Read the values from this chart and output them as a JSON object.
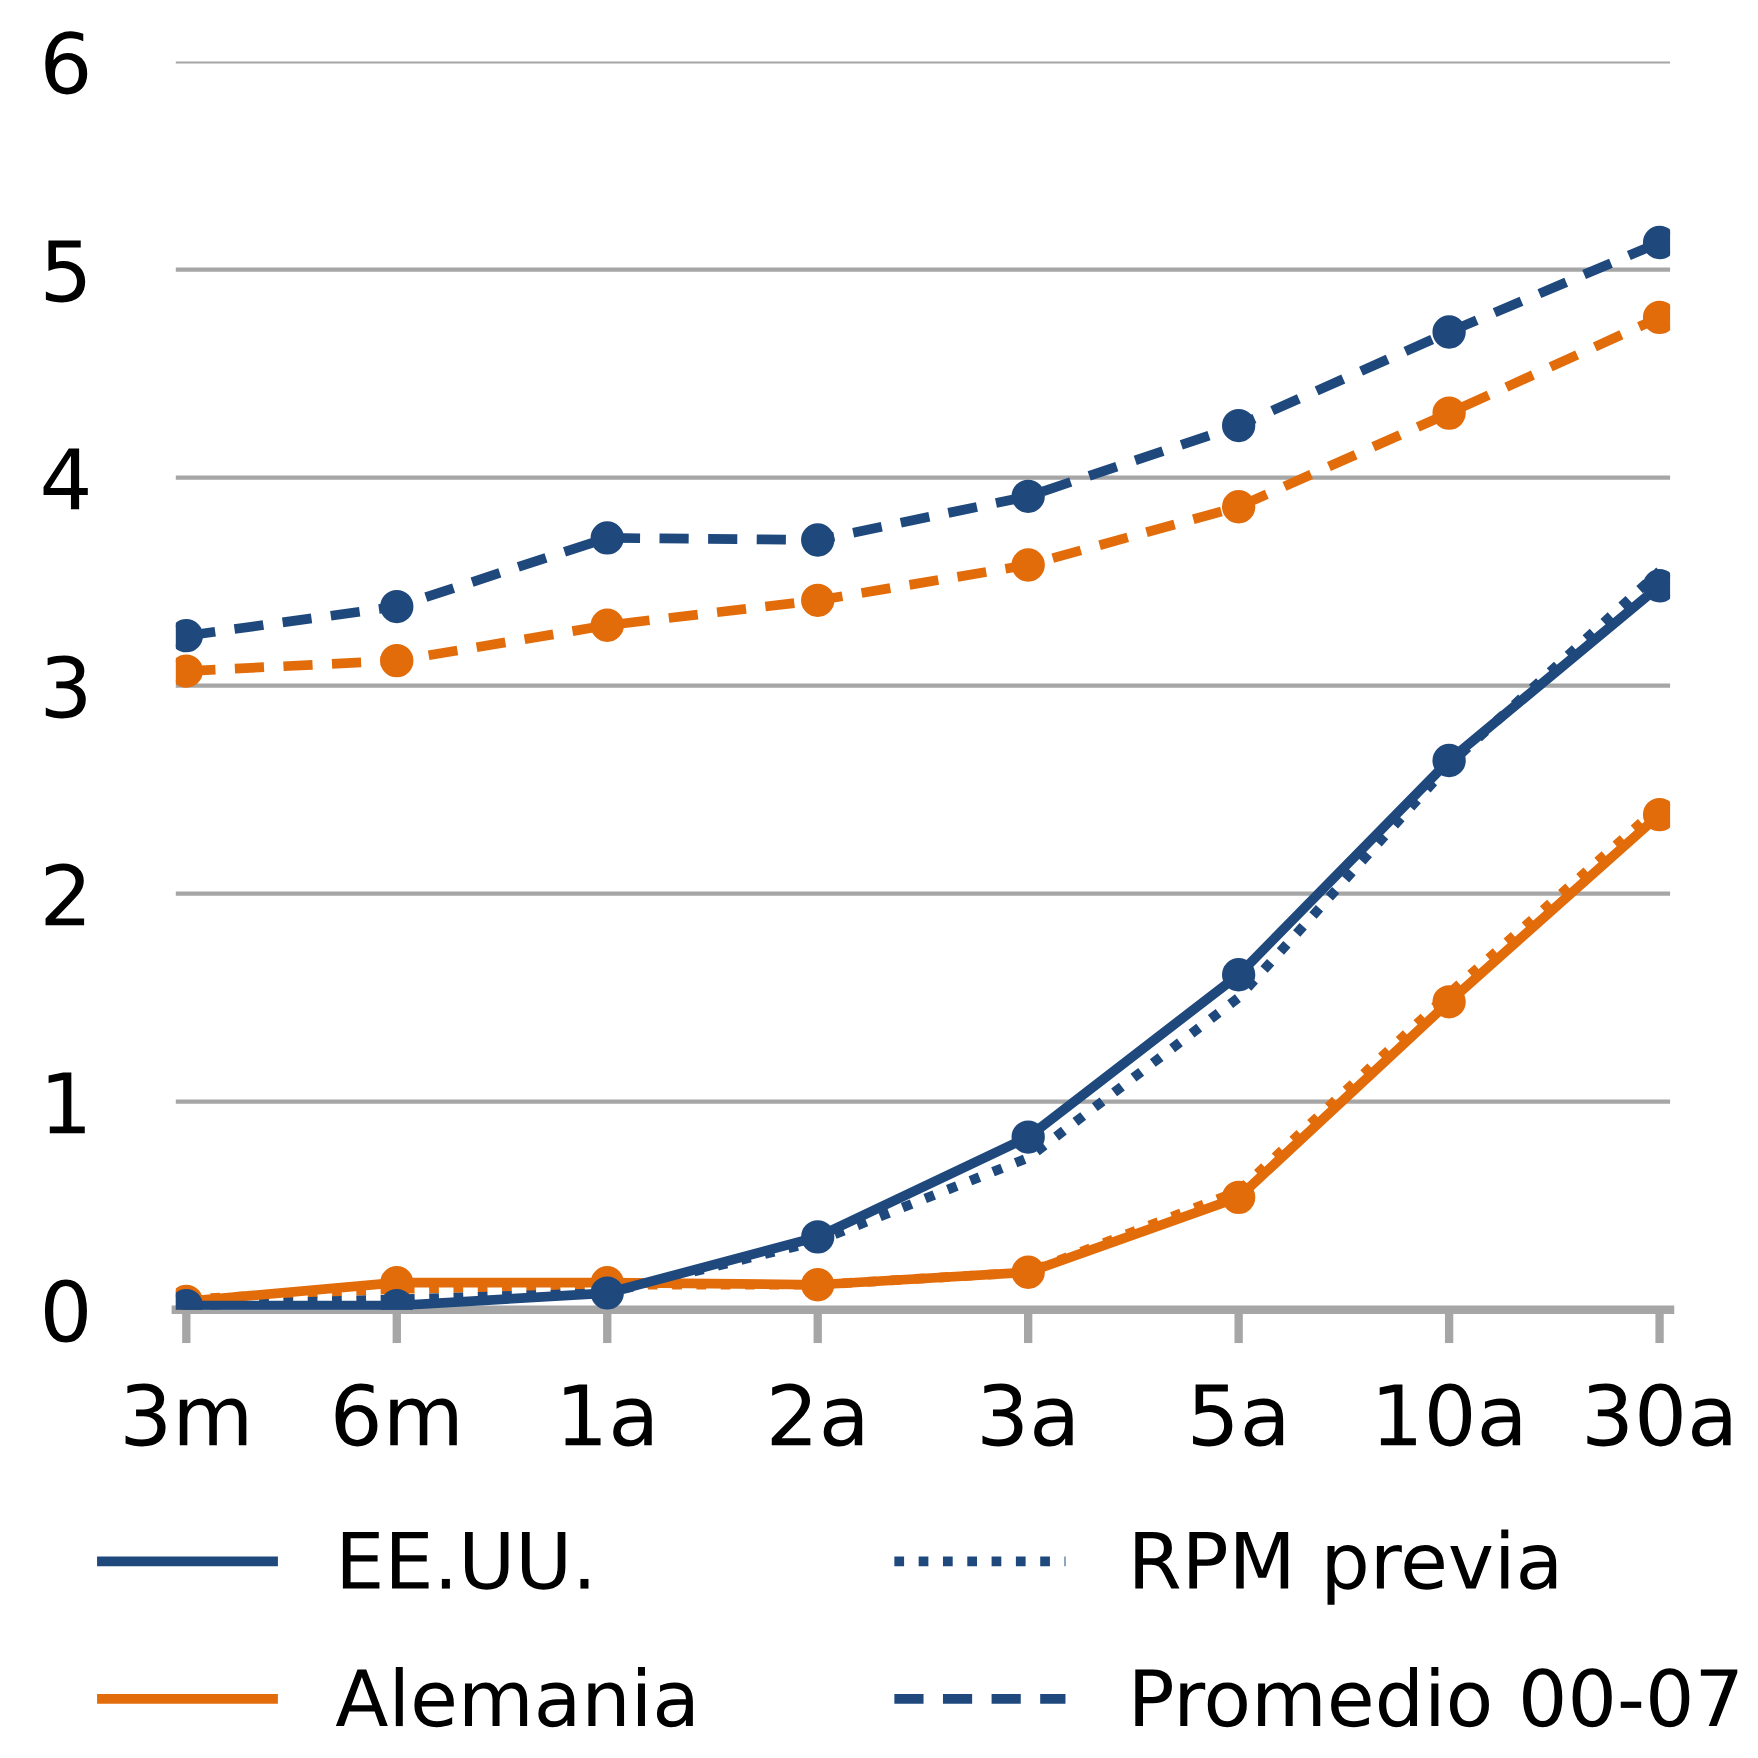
{
  "chart_data": {
    "type": "line",
    "categories": [
      "3m",
      "6m",
      "1a",
      "2a",
      "3a",
      "5a",
      "10a",
      "30a"
    ],
    "ylim": [
      0,
      6
    ],
    "yticks": [
      0,
      1,
      2,
      3,
      4,
      5,
      6
    ],
    "grid": "y",
    "legend": "bottom",
    "series": [
      {
        "name": "EE.UU.",
        "color": "#1f497d",
        "marker": "circle",
        "line_style": "solid",
        "values": [
          0.02,
          0.02,
          0.08,
          0.35,
          0.83,
          1.61,
          2.64,
          3.48
        ]
      },
      {
        "name": "Alemania",
        "color": "#e36c0a",
        "marker": "circle",
        "line_style": "solid",
        "values": [
          0.04,
          0.13,
          0.13,
          0.12,
          0.18,
          0.54,
          1.48,
          2.38
        ]
      },
      {
        "name": "RPM previa",
        "color": "#1f497d",
        "marker": "none",
        "line_style": "dotted",
        "values": [
          0.02,
          0.05,
          0.08,
          0.33,
          0.73,
          1.5,
          2.62,
          3.55
        ]
      },
      {
        "color": "#e36c0a",
        "marker": "none",
        "line_style": "dotted",
        "values": [
          0.05,
          0.1,
          0.12,
          0.12,
          0.18,
          0.57,
          1.52,
          2.42
        ]
      },
      {
        "name": "Promedio 00-07",
        "color": "#1f497d",
        "marker": "circle",
        "line_style": "dashed",
        "values": [
          3.24,
          3.38,
          3.71,
          3.7,
          3.91,
          4.25,
          4.7,
          5.13
        ]
      },
      {
        "color": "#e36c0a",
        "marker": "circle",
        "line_style": "dashed",
        "values": [
          3.07,
          3.12,
          3.29,
          3.41,
          3.58,
          3.86,
          4.31,
          4.77
        ]
      }
    ]
  }
}
